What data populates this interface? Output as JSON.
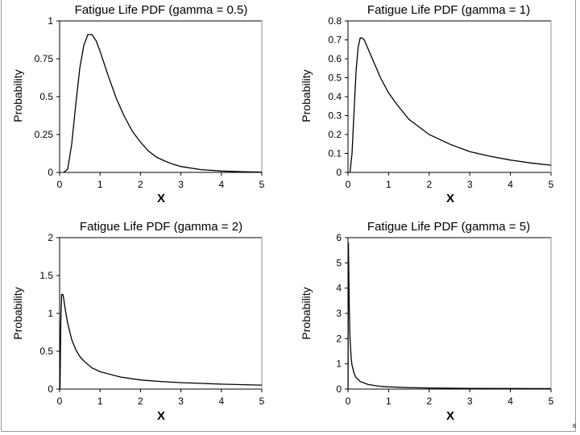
{
  "chart_data": [
    {
      "type": "line",
      "gamma": 0.5,
      "title": "Fatigue Life PDF (gamma = 0.5)",
      "xlabel": "X",
      "ylabel": "Probability",
      "xlim": [
        0,
        5
      ],
      "ylim": [
        0,
        1
      ],
      "xticks": [
        "0",
        "1",
        "2",
        "3",
        "4",
        "5"
      ],
      "yticks": [
        "0",
        "0.25",
        "0.5",
        "0.75",
        "1"
      ],
      "yvalues": [
        0,
        0.25,
        0.5,
        0.75,
        1
      ],
      "series": [
        {
          "name": "pdf",
          "x": [
            0.1,
            0.2,
            0.3,
            0.4,
            0.5,
            0.6,
            0.7,
            0.8,
            0.9,
            1.0,
            1.2,
            1.4,
            1.6,
            1.8,
            2.0,
            2.2,
            2.4,
            2.6,
            2.8,
            3.0,
            3.5,
            4.0,
            4.5,
            5.0
          ],
          "y": [
            0.0,
            0.02,
            0.19,
            0.45,
            0.69,
            0.84,
            0.91,
            0.91,
            0.87,
            0.8,
            0.64,
            0.49,
            0.37,
            0.27,
            0.2,
            0.14,
            0.1,
            0.075,
            0.054,
            0.039,
            0.018,
            0.009,
            0.004,
            0.002
          ]
        }
      ]
    },
    {
      "type": "line",
      "gamma": 1,
      "title": "Fatigue Life PDF (gamma = 1)",
      "xlabel": "X",
      "ylabel": "Probability",
      "xlim": [
        0,
        5
      ],
      "ylim": [
        0,
        0.8
      ],
      "xticks": [
        "0",
        "1",
        "2",
        "3",
        "4",
        "5"
      ],
      "yticks": [
        "0",
        "0.1",
        "0.2",
        "0.3",
        "0.4",
        "0.5",
        "0.6",
        "0.7",
        "0.8"
      ],
      "yvalues": [
        0,
        0.1,
        0.2,
        0.3,
        0.4,
        0.5,
        0.6,
        0.7,
        0.8
      ],
      "series": [
        {
          "name": "pdf",
          "x": [
            0.05,
            0.1,
            0.15,
            0.2,
            0.25,
            0.3,
            0.35,
            0.4,
            0.5,
            0.6,
            0.7,
            0.8,
            1.0,
            1.2,
            1.5,
            2.0,
            2.5,
            3.0,
            3.5,
            4.0,
            4.5,
            5.0
          ],
          "y": [
            0.0,
            0.1,
            0.33,
            0.54,
            0.66,
            0.71,
            0.71,
            0.7,
            0.65,
            0.6,
            0.55,
            0.5,
            0.42,
            0.36,
            0.28,
            0.2,
            0.15,
            0.11,
            0.085,
            0.065,
            0.05,
            0.038
          ]
        }
      ]
    },
    {
      "type": "line",
      "gamma": 2,
      "title": "Fatigue Life PDF (gamma = 2)",
      "xlabel": "X",
      "ylabel": "Probability",
      "xlim": [
        0,
        5
      ],
      "ylim": [
        0,
        2
      ],
      "xticks": [
        "0",
        "1",
        "2",
        "3",
        "4",
        "5"
      ],
      "yticks": [
        "0",
        "0.5",
        "1",
        "1.5",
        "2"
      ],
      "yvalues": [
        0,
        0.5,
        1,
        1.5,
        2
      ],
      "series": [
        {
          "name": "pdf",
          "x": [
            0.01,
            0.03,
            0.05,
            0.08,
            0.1,
            0.15,
            0.2,
            0.3,
            0.4,
            0.5,
            0.6,
            0.8,
            1.0,
            1.5,
            2.0,
            2.5,
            3.0,
            3.5,
            4.0,
            4.5,
            5.0
          ],
          "y": [
            0.0,
            0.9,
            1.25,
            1.25,
            1.2,
            1.02,
            0.87,
            0.65,
            0.52,
            0.43,
            0.37,
            0.28,
            0.23,
            0.16,
            0.12,
            0.1,
            0.085,
            0.075,
            0.065,
            0.058,
            0.052
          ]
        }
      ]
    },
    {
      "type": "line",
      "gamma": 5,
      "title": "Fatigue Life PDF (gamma = 5)",
      "xlabel": "X",
      "ylabel": "Probability",
      "xlim": [
        0,
        5
      ],
      "ylim": [
        0,
        6
      ],
      "xticks": [
        "0",
        "1",
        "2",
        "3",
        "4",
        "5"
      ],
      "yticks": [
        "0",
        "1",
        "2",
        "3",
        "4",
        "5",
        "6"
      ],
      "yvalues": [
        0,
        1,
        2,
        3,
        4,
        5,
        6
      ],
      "series": [
        {
          "name": "pdf",
          "x": [
            0.002,
            0.006,
            0.01,
            0.02,
            0.03,
            0.05,
            0.08,
            0.1,
            0.15,
            0.2,
            0.3,
            0.5,
            0.8,
            1.0,
            1.5,
            2.0,
            3.0,
            4.0,
            5.0
          ],
          "y": [
            0.0,
            5.5,
            5.8,
            4.6,
            3.4,
            2.0,
            1.2,
            0.95,
            0.62,
            0.45,
            0.3,
            0.18,
            0.11,
            0.09,
            0.06,
            0.045,
            0.03,
            0.022,
            0.018
          ]
        }
      ]
    }
  ],
  "page_number": "8"
}
